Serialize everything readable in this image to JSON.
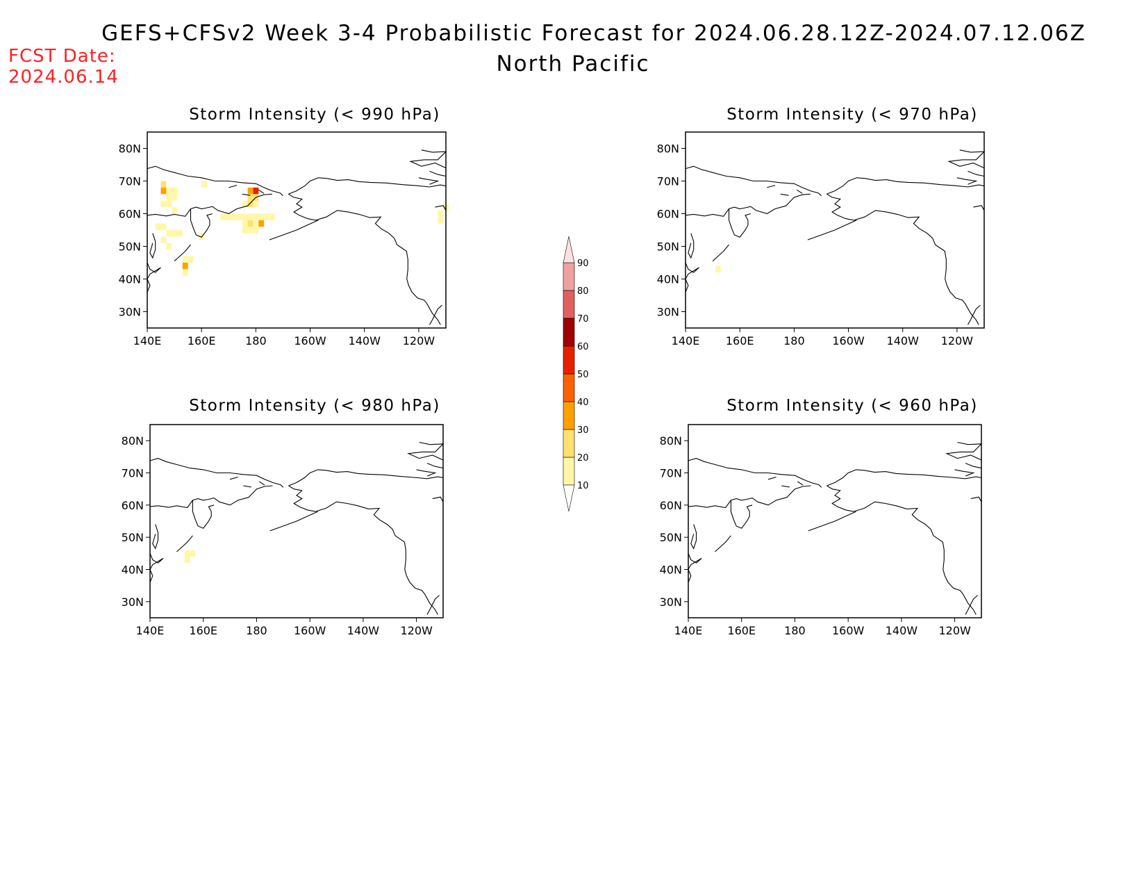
{
  "header": {
    "title": "GEFS+CFSv2 Week 3-4 Probabilistic Forecast for 2024.06.28.12Z-2024.07.12.06Z",
    "region": "North Pacific",
    "fcst_label": "FCST Date:",
    "fcst_date": "2024.06.14"
  },
  "colors": {
    "fcst_text": "#ff2020",
    "coast": "#000000"
  },
  "axes": {
    "lon_ticks": [
      "140E",
      "160E",
      "180",
      "160W",
      "140W",
      "120W"
    ],
    "lat_ticks": [
      "80N",
      "70N",
      "60N",
      "50N",
      "40N",
      "30N"
    ],
    "lon_range": [
      140,
      250
    ],
    "lat_range": [
      25,
      85
    ]
  },
  "panels": [
    {
      "id": "p990",
      "title": "Storm Intensity (< 990 hPa)"
    },
    {
      "id": "p970",
      "title": "Storm Intensity (< 970 hPa)"
    },
    {
      "id": "p980",
      "title": "Storm Intensity (< 980 hPa)"
    },
    {
      "id": "p960",
      "title": "Storm Intensity (< 960 hPa)"
    }
  ],
  "colorbar": {
    "levels": [
      "10",
      "20",
      "30",
      "40",
      "50",
      "60",
      "70",
      "80",
      "90"
    ],
    "colors": [
      "#fff7a8",
      "#ffe070",
      "#ffa000",
      "#ff6000",
      "#e82000",
      "#a00000",
      "#e06060",
      "#f0a0a0",
      "#ffe0e0",
      "#fff4f4"
    ]
  },
  "chart_data": {
    "type": "heatmap",
    "units": "probability (%)",
    "cells": {
      "p990": [
        {
          "lon": 146,
          "lat": 69,
          "v": 25
        },
        {
          "lon": 146,
          "lat": 67,
          "v": 35
        },
        {
          "lon": 148,
          "lat": 67,
          "v": 15
        },
        {
          "lon": 150,
          "lat": 67,
          "v": 12
        },
        {
          "lon": 148,
          "lat": 65,
          "v": 15
        },
        {
          "lon": 150,
          "lat": 65,
          "v": 15
        },
        {
          "lon": 146,
          "lat": 63,
          "v": 15
        },
        {
          "lon": 148,
          "lat": 63,
          "v": 12
        },
        {
          "lon": 150,
          "lat": 61,
          "v": 12
        },
        {
          "lon": 161,
          "lat": 69,
          "v": 12
        },
        {
          "lon": 144,
          "lat": 56,
          "v": 15
        },
        {
          "lon": 146,
          "lat": 56,
          "v": 12
        },
        {
          "lon": 148,
          "lat": 54,
          "v": 15
        },
        {
          "lon": 150,
          "lat": 54,
          "v": 12
        },
        {
          "lon": 152,
          "lat": 54,
          "v": 12
        },
        {
          "lon": 146,
          "lat": 52,
          "v": 12
        },
        {
          "lon": 148,
          "lat": 50,
          "v": 12
        },
        {
          "lon": 160,
          "lat": 53,
          "v": 12
        },
        {
          "lon": 154,
          "lat": 46,
          "v": 15
        },
        {
          "lon": 154,
          "lat": 44,
          "v": 35
        },
        {
          "lon": 156,
          "lat": 46,
          "v": 15
        },
        {
          "lon": 154,
          "lat": 42,
          "v": 12
        },
        {
          "lon": 178,
          "lat": 67,
          "v": 35
        },
        {
          "lon": 180,
          "lat": 67,
          "v": 55
        },
        {
          "lon": 178,
          "lat": 65,
          "v": 25
        },
        {
          "lon": 180,
          "lat": 65,
          "v": 25
        },
        {
          "lon": 176,
          "lat": 63,
          "v": 15
        },
        {
          "lon": 178,
          "lat": 63,
          "v": 25
        },
        {
          "lon": 180,
          "lat": 63,
          "v": 15
        },
        {
          "lon": 168,
          "lat": 59,
          "v": 15
        },
        {
          "lon": 170,
          "lat": 59,
          "v": 15
        },
        {
          "lon": 172,
          "lat": 59,
          "v": 15
        },
        {
          "lon": 174,
          "lat": 59,
          "v": 15
        },
        {
          "lon": 176,
          "lat": 59,
          "v": 15
        },
        {
          "lon": 178,
          "lat": 59,
          "v": 15
        },
        {
          "lon": 180,
          "lat": 59,
          "v": 15
        },
        {
          "lon": 182,
          "lat": 59,
          "v": 15
        },
        {
          "lon": 184,
          "lat": 59,
          "v": 12
        },
        {
          "lon": 186,
          "lat": 59,
          "v": 12
        },
        {
          "lon": 176,
          "lat": 57,
          "v": 15
        },
        {
          "lon": 178,
          "lat": 57,
          "v": 25
        },
        {
          "lon": 180,
          "lat": 57,
          "v": 15
        },
        {
          "lon": 182,
          "lat": 57,
          "v": 35
        },
        {
          "lon": 176,
          "lat": 55,
          "v": 15
        },
        {
          "lon": 178,
          "lat": 55,
          "v": 15
        },
        {
          "lon": 180,
          "lat": 55,
          "v": 15
        },
        {
          "lon": 248,
          "lat": 60,
          "v": 15
        },
        {
          "lon": 248,
          "lat": 58,
          "v": 15
        },
        {
          "lon": 250,
          "lat": 62,
          "v": 12
        }
      ],
      "p970": [
        {
          "lon": 152,
          "lat": 43,
          "v": 12
        }
      ],
      "p980": [
        {
          "lon": 154,
          "lat": 45,
          "v": 15
        },
        {
          "lon": 154,
          "lat": 43,
          "v": 15
        },
        {
          "lon": 156,
          "lat": 45,
          "v": 12
        }
      ],
      "p960": []
    }
  }
}
